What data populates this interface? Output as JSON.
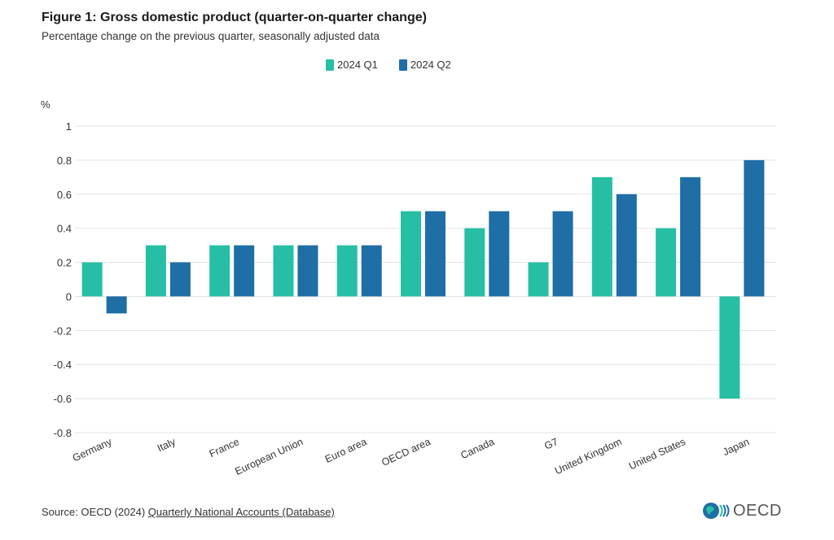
{
  "title": "Figure 1: Gross domestic product (quarter-on-quarter change)",
  "subtitle": "Percentage change on the previous quarter, seasonally adjusted data",
  "source": {
    "prefix": "Source: OECD (2024) ",
    "link": "Quarterly National Accounts (Database)"
  },
  "logo": {
    "text": "OECD",
    "icon": "globe-icon"
  },
  "colors": {
    "q1": "#26bfa5",
    "q2": "#1f6ea6",
    "grid": "#e3e3e3"
  },
  "chart_data": {
    "type": "bar",
    "title": "Figure 1: Gross domestic product (quarter-on-quarter change)",
    "subtitle": "Percentage change on the previous quarter, seasonally adjusted data",
    "ylabel": "%",
    "ylim": [
      -0.8,
      1
    ],
    "yticks": [
      "1",
      "0.8",
      "0.6",
      "0.4",
      "0.2",
      "0",
      "-0.2",
      "-0.4",
      "-0.6",
      "-0.8"
    ],
    "grid": true,
    "legend_position": "top-center",
    "categories": [
      "Germany",
      "Italy",
      "France",
      "European Union",
      "Euro area",
      "OECD area",
      "Canada",
      "G7",
      "United Kingdom",
      "United States",
      "Japan"
    ],
    "series": [
      {
        "name": "2024 Q1",
        "values": [
          0.2,
          0.3,
          0.3,
          0.3,
          0.3,
          0.5,
          0.4,
          0.2,
          0.7,
          0.4,
          -0.6
        ]
      },
      {
        "name": "2024 Q2",
        "values": [
          -0.1,
          0.2,
          0.3,
          0.3,
          0.3,
          0.5,
          0.5,
          0.5,
          0.6,
          0.7,
          0.8
        ]
      }
    ]
  }
}
